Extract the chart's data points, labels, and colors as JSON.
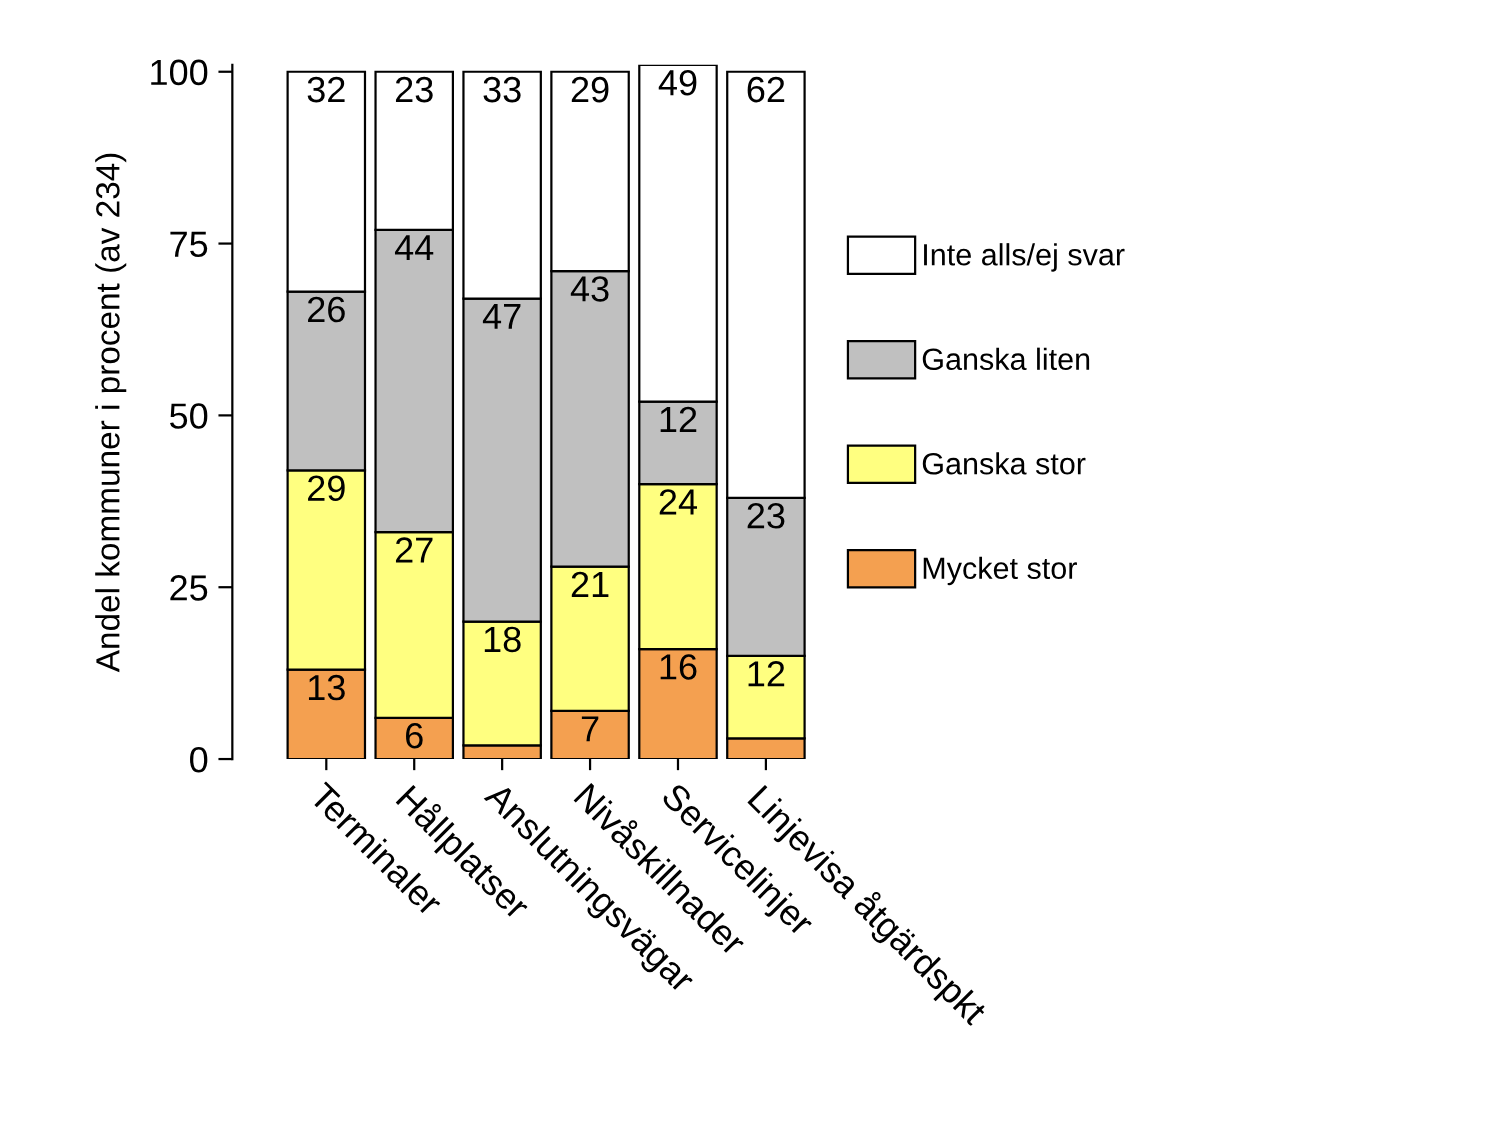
{
  "chart_data": {
    "type": "bar",
    "stacked": true,
    "ylabel": "Andel kommuner i procent (av 234)",
    "categories": [
      "Terminaler",
      "Hållplatser",
      "Anslutningsvägar",
      "Nivåskillnader",
      "Servicelinjer",
      "Linjevisa åtgärdspkt"
    ],
    "series": [
      {
        "name": "Mycket stor",
        "color": "#f4a050",
        "values": [
          13,
          6,
          2,
          7,
          16,
          3
        ],
        "value_labels": [
          "13",
          "6",
          null,
          "7",
          "16",
          null
        ]
      },
      {
        "name": "Ganska stor",
        "color": "#ffff80",
        "values": [
          29,
          27,
          18,
          21,
          24,
          12
        ],
        "value_labels": [
          "29",
          "27",
          "18",
          "21",
          "24",
          "12"
        ]
      },
      {
        "name": "Ganska liten",
        "color": "#c0c0c0",
        "values": [
          26,
          44,
          47,
          43,
          12,
          23
        ],
        "value_labels": [
          "26",
          "44",
          "47",
          "43",
          "12",
          "23"
        ]
      },
      {
        "name": "Inte alls/ej svar",
        "color": "#ffffff",
        "values": [
          32,
          23,
          33,
          29,
          49,
          62
        ],
        "value_labels": [
          "32",
          "23",
          "33",
          "29",
          "49",
          "62"
        ]
      }
    ],
    "ylim": [
      0,
      101
    ],
    "yticks": [
      0,
      25,
      50,
      75,
      100
    ],
    "grid": false,
    "legend": "right"
  }
}
